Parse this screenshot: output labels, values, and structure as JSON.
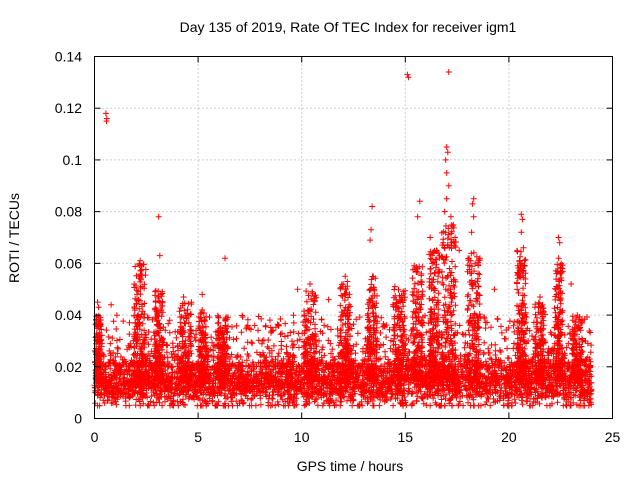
{
  "chart_data": {
    "type": "scatter",
    "title": "Day 135 of 2019, Rate Of TEC Index for receiver igm1",
    "xlabel": "GPS time / hours",
    "ylabel": "ROTI / TECUs",
    "xlim": [
      0,
      25
    ],
    "ylim": [
      0,
      0.14
    ],
    "xticks": [
      0,
      5,
      10,
      15,
      20,
      25
    ],
    "xtick_labels": [
      "0",
      "5",
      "10",
      "15",
      "20",
      "25"
    ],
    "yticks": [
      0,
      0.02,
      0.04,
      0.06,
      0.08,
      0.1,
      0.12,
      0.14
    ],
    "ytick_labels": [
      "0",
      "0.02",
      "0.04",
      "0.06",
      "0.08",
      "0.1",
      "0.12",
      "0.14"
    ],
    "grid": true,
    "marker": "+",
    "series": [
      {
        "name": "ROTI",
        "color": "#ff0000",
        "x_range": [
          0,
          24
        ],
        "baseline_band": [
          0.005,
          0.03
        ],
        "notable_points": [
          {
            "x": 0.55,
            "y": 0.118
          },
          {
            "x": 0.6,
            "y": 0.116
          },
          {
            "x": 0.58,
            "y": 0.115
          },
          {
            "x": 3.1,
            "y": 0.078
          },
          {
            "x": 3.15,
            "y": 0.063
          },
          {
            "x": 6.3,
            "y": 0.062
          },
          {
            "x": 13.4,
            "y": 0.082
          },
          {
            "x": 13.35,
            "y": 0.073
          },
          {
            "x": 13.3,
            "y": 0.069
          },
          {
            "x": 15.1,
            "y": 0.133
          },
          {
            "x": 15.15,
            "y": 0.132
          },
          {
            "x": 15.7,
            "y": 0.084
          },
          {
            "x": 15.6,
            "y": 0.078
          },
          {
            "x": 17.1,
            "y": 0.134
          },
          {
            "x": 17.0,
            "y": 0.105
          },
          {
            "x": 17.05,
            "y": 0.103
          },
          {
            "x": 16.95,
            "y": 0.1
          },
          {
            "x": 17.0,
            "y": 0.095
          },
          {
            "x": 17.1,
            "y": 0.09
          },
          {
            "x": 17.0,
            "y": 0.085
          },
          {
            "x": 16.9,
            "y": 0.08
          },
          {
            "x": 17.2,
            "y": 0.078
          },
          {
            "x": 18.3,
            "y": 0.085
          },
          {
            "x": 18.25,
            "y": 0.083
          },
          {
            "x": 18.3,
            "y": 0.078
          },
          {
            "x": 18.2,
            "y": 0.072
          },
          {
            "x": 20.6,
            "y": 0.079
          },
          {
            "x": 20.65,
            "y": 0.077
          },
          {
            "x": 20.6,
            "y": 0.072
          },
          {
            "x": 20.7,
            "y": 0.066
          },
          {
            "x": 22.4,
            "y": 0.07
          },
          {
            "x": 22.45,
            "y": 0.068
          },
          {
            "x": 22.4,
            "y": 0.062
          },
          {
            "x": 2.2,
            "y": 0.061
          },
          {
            "x": 2.25,
            "y": 0.059
          },
          {
            "x": 2.15,
            "y": 0.055
          },
          {
            "x": 4.3,
            "y": 0.047
          },
          {
            "x": 5.2,
            "y": 0.048
          },
          {
            "x": 9.8,
            "y": 0.05
          },
          {
            "x": 10.4,
            "y": 0.052
          },
          {
            "x": 10.5,
            "y": 0.049
          },
          {
            "x": 11.3,
            "y": 0.046
          },
          {
            "x": 12.1,
            "y": 0.055
          },
          {
            "x": 12.2,
            "y": 0.053
          },
          {
            "x": 14.5,
            "y": 0.051
          },
          {
            "x": 16.2,
            "y": 0.07
          },
          {
            "x": 16.5,
            "y": 0.065
          },
          {
            "x": 16.3,
            "y": 0.06
          },
          {
            "x": 17.4,
            "y": 0.07
          },
          {
            "x": 17.6,
            "y": 0.065
          },
          {
            "x": 18.6,
            "y": 0.062
          },
          {
            "x": 19.3,
            "y": 0.05
          },
          {
            "x": 21.5,
            "y": 0.047
          },
          {
            "x": 23.0,
            "y": 0.052
          },
          {
            "x": 23.3,
            "y": 0.04
          },
          {
            "x": 0.15,
            "y": 0.045
          },
          {
            "x": 0.2,
            "y": 0.043
          },
          {
            "x": 0.8,
            "y": 0.044
          },
          {
            "x": 7.4,
            "y": 0.036
          },
          {
            "x": 8.1,
            "y": 0.03
          }
        ],
        "peak_clusters": [
          {
            "center": 0.2,
            "width": 0.3,
            "top": 0.04
          },
          {
            "center": 2.2,
            "width": 0.6,
            "top": 0.06
          },
          {
            "center": 3.1,
            "width": 0.4,
            "top": 0.05
          },
          {
            "center": 4.4,
            "width": 0.6,
            "top": 0.045
          },
          {
            "center": 5.2,
            "width": 0.4,
            "top": 0.042
          },
          {
            "center": 6.2,
            "width": 0.5,
            "top": 0.04
          },
          {
            "center": 10.4,
            "width": 0.6,
            "top": 0.05
          },
          {
            "center": 12.1,
            "width": 0.5,
            "top": 0.052
          },
          {
            "center": 13.4,
            "width": 0.5,
            "top": 0.055
          },
          {
            "center": 14.7,
            "width": 0.6,
            "top": 0.05
          },
          {
            "center": 15.6,
            "width": 0.5,
            "top": 0.06
          },
          {
            "center": 16.4,
            "width": 0.5,
            "top": 0.065
          },
          {
            "center": 17.1,
            "width": 0.7,
            "top": 0.075
          },
          {
            "center": 18.3,
            "width": 0.6,
            "top": 0.065
          },
          {
            "center": 20.6,
            "width": 0.5,
            "top": 0.065
          },
          {
            "center": 21.5,
            "width": 0.5,
            "top": 0.045
          },
          {
            "center": 22.4,
            "width": 0.4,
            "top": 0.06
          },
          {
            "center": 23.3,
            "width": 0.5,
            "top": 0.04
          }
        ],
        "dense_band_mean": 0.014,
        "approx_total_points": 3500
      }
    ]
  }
}
